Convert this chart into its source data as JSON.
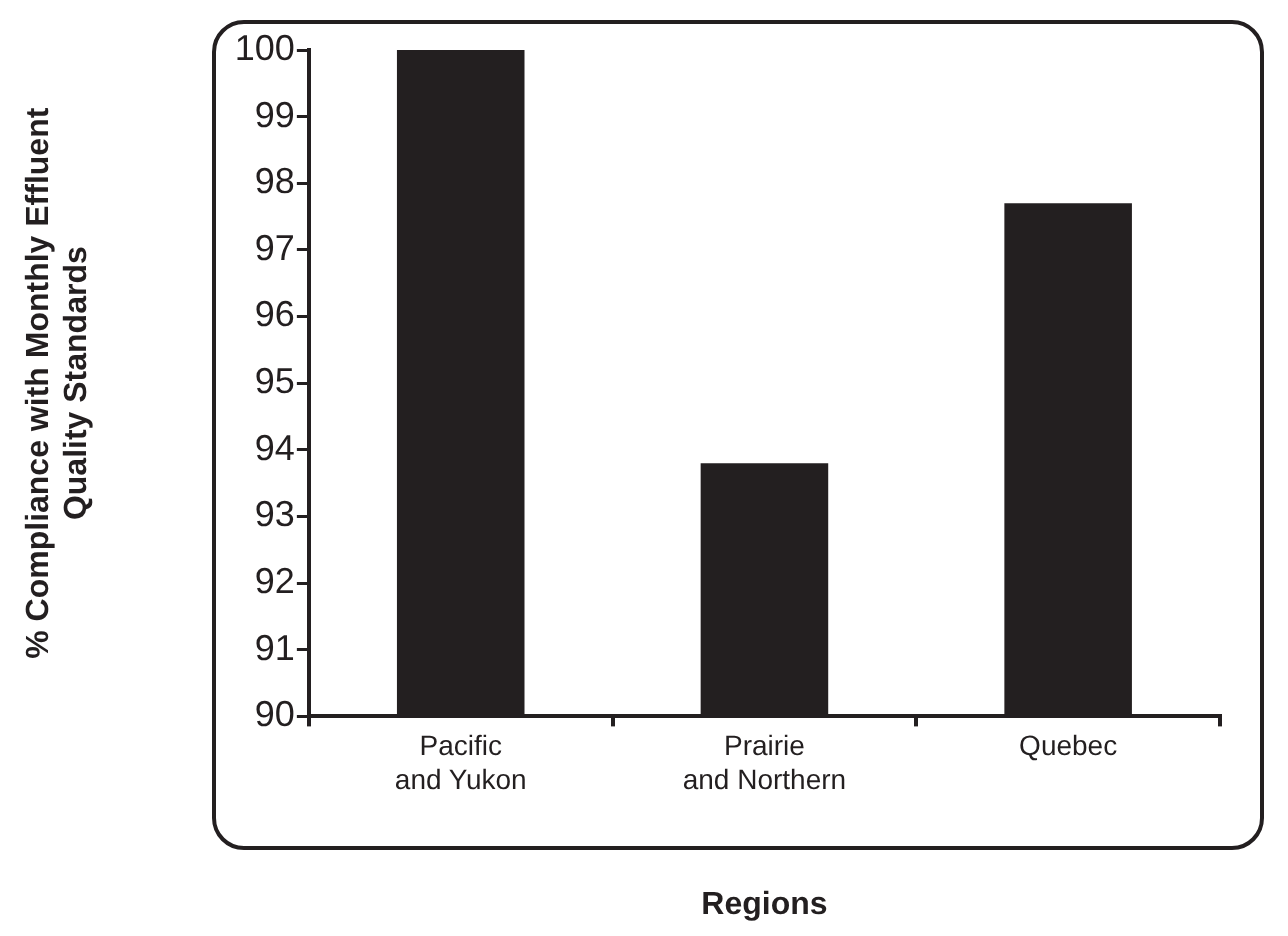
{
  "chart_data": {
    "type": "bar",
    "xlabel": "Regions",
    "ylabel": "% Compliance with Monthly Effluent\nQuality Standards",
    "categories": [
      "Pacific\nand Yukon",
      "Prairie\nand Northern",
      "Quebec"
    ],
    "values": [
      100,
      93.8,
      97.7
    ],
    "color": "#231f20",
    "ylim": [
      90,
      100
    ],
    "yticks": [
      90,
      91,
      92,
      93,
      94,
      95,
      96,
      97,
      98,
      99,
      100
    ],
    "grid": false,
    "legend": false
  }
}
